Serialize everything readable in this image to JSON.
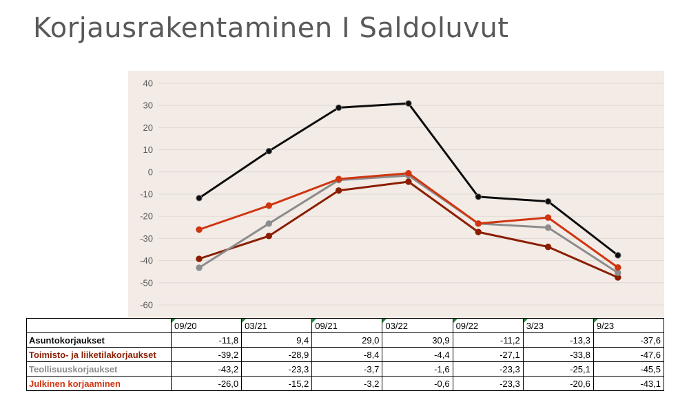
{
  "page": {
    "title": "Korjausrakentaminen I Saldoluvut"
  },
  "colors": {
    "plot_background": "#f2ebe6",
    "gridline": "#e2d9d3",
    "series": [
      "#0d0d0d",
      "#8b1e00",
      "#8c8c8c",
      "#d03510"
    ]
  },
  "chart_data": {
    "type": "line",
    "categories": [
      "09/20",
      "03/21",
      "09/21",
      "03/22",
      "09/22",
      "3/23",
      "9/23"
    ],
    "ylim": [
      -60,
      40
    ],
    "yticks": [
      40,
      30,
      20,
      10,
      0,
      -10,
      -20,
      -30,
      -40,
      -50,
      -60
    ],
    "ytick_labels": [
      "40",
      "30",
      "20",
      "10",
      "0",
      "-10",
      "-20",
      "-30",
      "-40",
      "-50",
      "-60"
    ],
    "grid": true,
    "series": [
      {
        "name": "Asuntokorjaukset",
        "values": [
          -11.8,
          9.4,
          29.0,
          30.9,
          -11.2,
          -13.3,
          -37.6
        ],
        "display": [
          "-11,8",
          "9,4",
          "29,0",
          "30,9",
          "-11,2",
          "-13,3",
          "-37,6"
        ]
      },
      {
        "name": "Toimisto- ja liiketilakorjaukset",
        "values": [
          -39.2,
          -28.9,
          -8.4,
          -4.4,
          -27.1,
          -33.8,
          -47.6
        ],
        "display": [
          "-39,2",
          "-28,9",
          "-8,4",
          "-4,4",
          "-27,1",
          "-33,8",
          "-47,6"
        ]
      },
      {
        "name": "Teollisuuskorjaukset",
        "values": [
          -43.2,
          -23.3,
          -3.7,
          -1.6,
          -23.3,
          -25.1,
          -45.5
        ],
        "display": [
          "-43,2",
          "-23,3",
          "-3,7",
          "-1,6",
          "-23,3",
          "-25,1",
          "-45,5"
        ]
      },
      {
        "name": "Julkinen korjaaminen",
        "values": [
          -26.0,
          -15.2,
          -3.2,
          -0.6,
          -23.3,
          -20.6,
          -43.1
        ],
        "display": [
          "-26,0",
          "-15,2",
          "-3,2",
          "-0,6",
          "-23,3",
          "-20,6",
          "-43,1"
        ]
      }
    ]
  }
}
